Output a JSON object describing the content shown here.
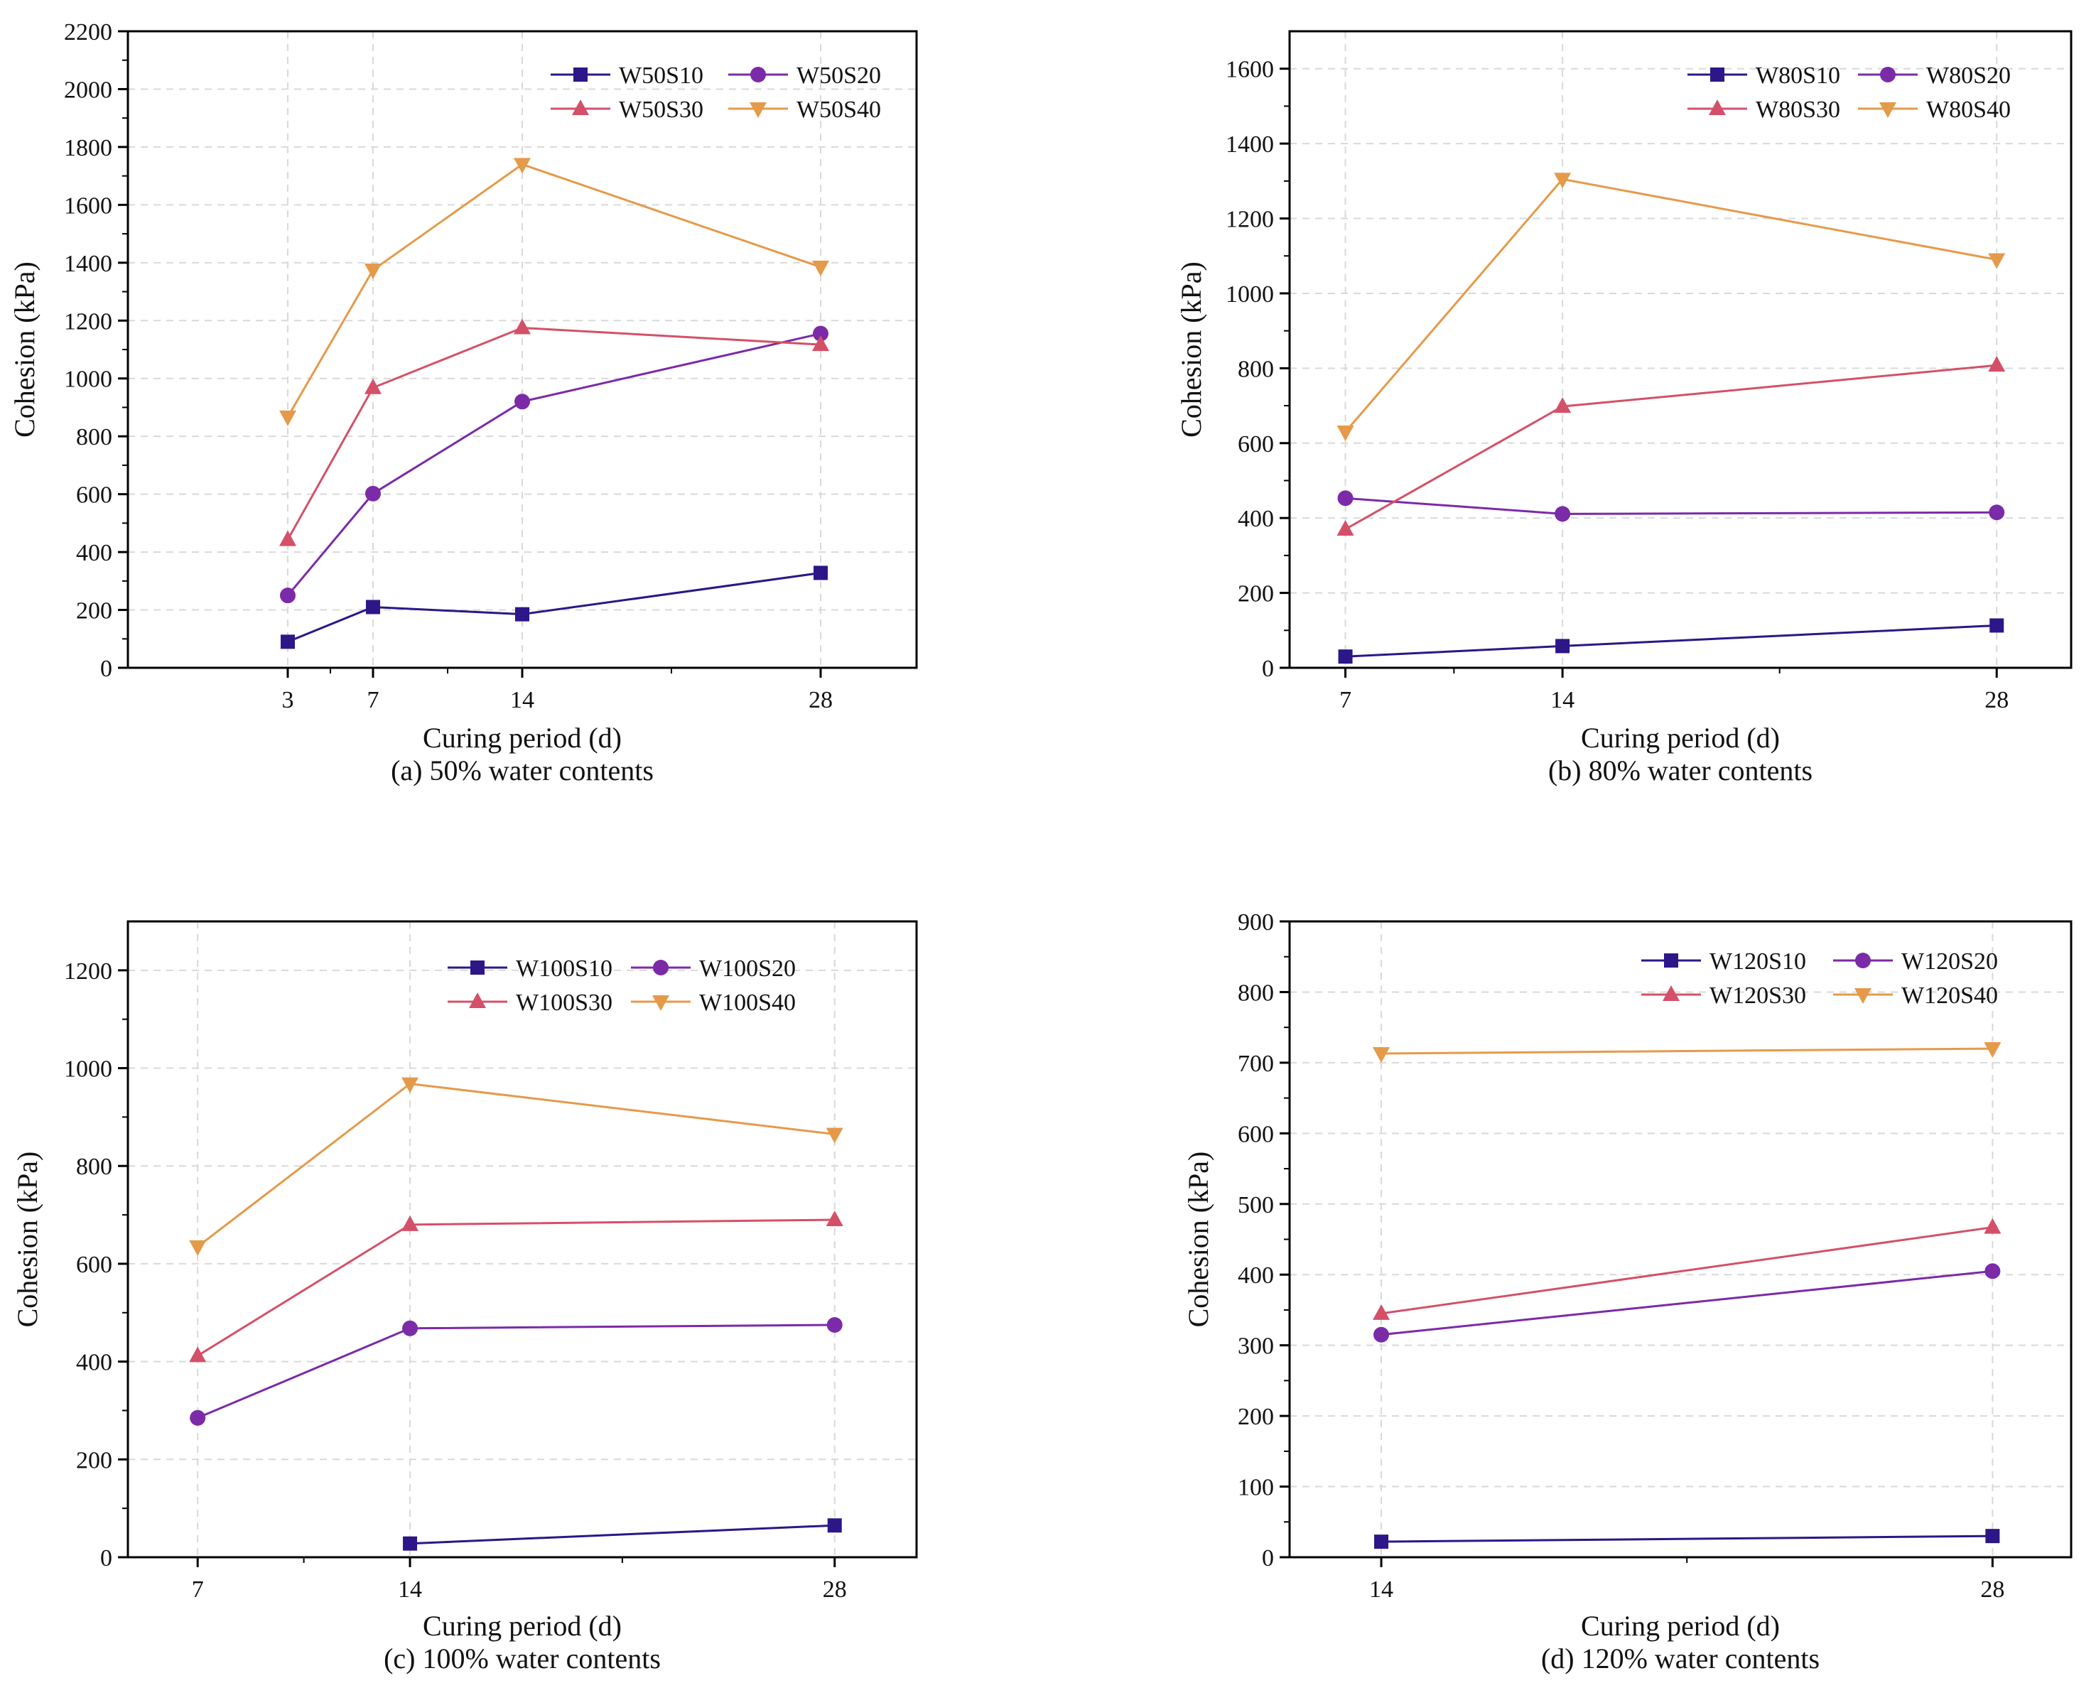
{
  "figure": {
    "colors": {
      "S10": "#2d1688",
      "S20": "#7b2aa8",
      "S30": "#d45068",
      "S40": "#e59a4a",
      "axis": "#000000",
      "grid": "#d9d9d9"
    }
  },
  "chart_data": [
    {
      "type": "line",
      "title": "",
      "caption": "(a) 50% water contents",
      "xlabel": "Curing period (d)",
      "ylabel": "Cohesion (kPa)",
      "xlim": [
        -4.5,
        32.5
      ],
      "ylim": [
        0,
        2200
      ],
      "xticks": [
        3,
        7,
        14,
        28
      ],
      "xminor": [
        5,
        10.5,
        21
      ],
      "yticks": [
        0,
        200,
        400,
        600,
        800,
        1000,
        1200,
        1400,
        1600,
        1800,
        2000,
        2200
      ],
      "yminor": [
        100,
        300,
        500,
        700,
        900,
        1100,
        1300,
        1500,
        1700,
        1900,
        2100
      ],
      "series": [
        {
          "name": "W50S10",
          "key": "S10",
          "marker": "square",
          "x": [
            3,
            7,
            14,
            28
          ],
          "values": [
            90,
            210,
            185,
            328
          ]
        },
        {
          "name": "W50S20",
          "key": "S20",
          "marker": "circle",
          "x": [
            3,
            7,
            14,
            28
          ],
          "values": [
            250,
            602,
            920,
            1155
          ]
        },
        {
          "name": "W50S30",
          "key": "S30",
          "marker": "triangle-up",
          "x": [
            3,
            7,
            14,
            28
          ],
          "values": [
            443,
            968,
            1175,
            1117
          ]
        },
        {
          "name": "W50S40",
          "key": "S40",
          "marker": "triangle-down",
          "x": [
            3,
            7,
            14,
            28
          ],
          "values": [
            867,
            1375,
            1740,
            1385
          ]
        }
      ]
    },
    {
      "type": "line",
      "title": "",
      "caption": "(b) 80% water contents",
      "xlabel": "Curing period (d)",
      "ylabel": "Cohesion (kPa)",
      "xlim": [
        5.2,
        30.4
      ],
      "ylim": [
        0,
        1700
      ],
      "xticks": [
        7,
        14,
        28
      ],
      "xminor": [
        10.5,
        21
      ],
      "yticks": [
        0,
        200,
        400,
        600,
        800,
        1000,
        1200,
        1400,
        1600
      ],
      "yminor": [
        100,
        300,
        500,
        700,
        900,
        1100,
        1300,
        1500
      ],
      "series": [
        {
          "name": "W80S10",
          "key": "S10",
          "marker": "square",
          "x": [
            7,
            14,
            28
          ],
          "values": [
            30,
            58,
            113
          ]
        },
        {
          "name": "W80S20",
          "key": "S20",
          "marker": "circle",
          "x": [
            7,
            14,
            28
          ],
          "values": [
            453,
            411,
            415
          ]
        },
        {
          "name": "W80S30",
          "key": "S30",
          "marker": "triangle-up",
          "x": [
            7,
            14,
            28
          ],
          "values": [
            370,
            698,
            808
          ]
        },
        {
          "name": "W80S40",
          "key": "S40",
          "marker": "triangle-down",
          "x": [
            7,
            14,
            28
          ],
          "values": [
            630,
            1305,
            1090
          ]
        }
      ]
    },
    {
      "type": "line",
      "title": "",
      "caption": "(c) 100% water contents",
      "xlabel": "Curing period (d)",
      "ylabel": "Cohesion (kPa)",
      "xlim": [
        4.7,
        30.7
      ],
      "ylim": [
        0,
        1300
      ],
      "xticks": [
        7,
        14,
        28
      ],
      "xminor": [
        10.5,
        21
      ],
      "yticks": [
        0,
        200,
        400,
        600,
        800,
        1000,
        1200
      ],
      "yminor": [
        100,
        300,
        500,
        700,
        900,
        1100
      ],
      "series": [
        {
          "name": "W100S10",
          "key": "S10",
          "marker": "square",
          "x": [
            14,
            28
          ],
          "values": [
            28,
            65
          ]
        },
        {
          "name": "W100S20",
          "key": "S20",
          "marker": "circle",
          "x": [
            7,
            14,
            28
          ],
          "values": [
            285,
            468,
            475
          ]
        },
        {
          "name": "W100S30",
          "key": "S30",
          "marker": "triangle-up",
          "x": [
            7,
            14,
            28
          ],
          "values": [
            412,
            680,
            690
          ]
        },
        {
          "name": "W100S40",
          "key": "S40",
          "marker": "triangle-down",
          "x": [
            7,
            14,
            28
          ],
          "values": [
            635,
            968,
            865
          ]
        }
      ]
    },
    {
      "type": "line",
      "title": "",
      "caption": "(d) 120% water contents",
      "xlabel": "Curing period (d)",
      "ylabel": "Cohesion (kPa)",
      "xlim": [
        11.9,
        29.8
      ],
      "ylim": [
        0,
        900
      ],
      "xticks": [
        14,
        28
      ],
      "xminor": [
        21
      ],
      "yticks": [
        0,
        100,
        200,
        300,
        400,
        500,
        600,
        700,
        800,
        900
      ],
      "yminor": [
        50,
        150,
        250,
        350,
        450,
        550,
        650,
        750,
        850
      ],
      "series": [
        {
          "name": "W120S10",
          "key": "S10",
          "marker": "square",
          "x": [
            14,
            28
          ],
          "values": [
            22,
            30
          ]
        },
        {
          "name": "W120S20",
          "key": "S20",
          "marker": "circle",
          "x": [
            14,
            28
          ],
          "values": [
            315,
            405
          ]
        },
        {
          "name": "W120S30",
          "key": "S30",
          "marker": "triangle-up",
          "x": [
            14,
            28
          ],
          "values": [
            345,
            467
          ]
        },
        {
          "name": "W120S40",
          "key": "S40",
          "marker": "triangle-down",
          "x": [
            14,
            28
          ],
          "values": [
            713,
            720
          ]
        }
      ]
    }
  ]
}
